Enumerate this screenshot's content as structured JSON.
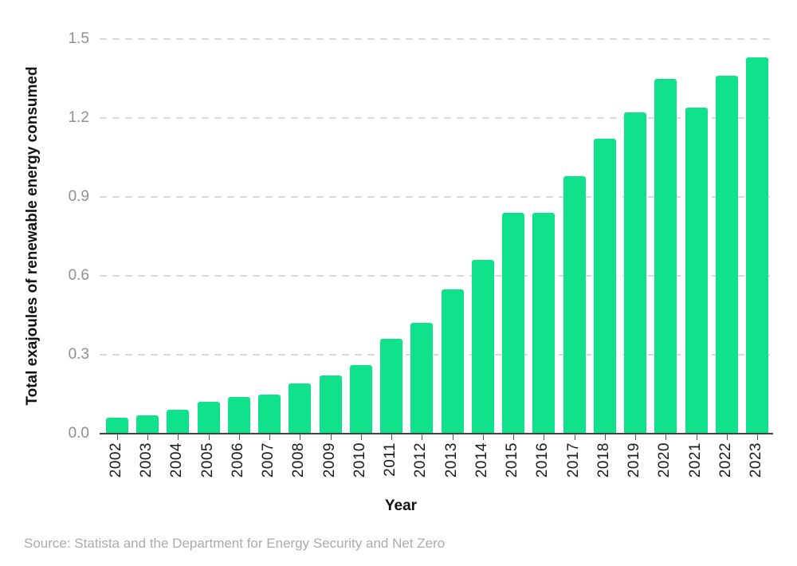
{
  "chart_data": {
    "type": "bar",
    "title": "",
    "xlabel": "Year",
    "ylabel": "Total exajoules of renewable energy consumed",
    "categories": [
      "2002",
      "2003",
      "2004",
      "2005",
      "2006",
      "2007",
      "2008",
      "2009",
      "2010",
      "2011",
      "2012",
      "2013",
      "2014",
      "2015",
      "2016",
      "2017",
      "2018",
      "2019",
      "2020",
      "2021",
      "2022",
      "2023"
    ],
    "values": [
      0.06,
      0.07,
      0.09,
      0.12,
      0.14,
      0.15,
      0.19,
      0.22,
      0.26,
      0.36,
      0.42,
      0.55,
      0.66,
      0.84,
      0.84,
      0.98,
      1.12,
      1.22,
      1.35,
      1.24,
      1.36,
      1.43
    ],
    "ylim": [
      0,
      1.5
    ],
    "yticks": [
      0.0,
      0.3,
      0.6,
      0.9,
      1.2,
      1.5
    ],
    "grid": "horizontal-dashed",
    "legend": "none",
    "bar_color": "#10e28c"
  },
  "source_note": "Source: Statista and the Department for Energy Security and Net Zero",
  "colors": {
    "bar": "#10e28c",
    "axis_line": "#444444",
    "gridline": "#d9d9d9",
    "x_tick_text": "#1a1a1a",
    "y_tick_text": "#909090",
    "source_text": "#ababab",
    "background": "#ffffff"
  }
}
